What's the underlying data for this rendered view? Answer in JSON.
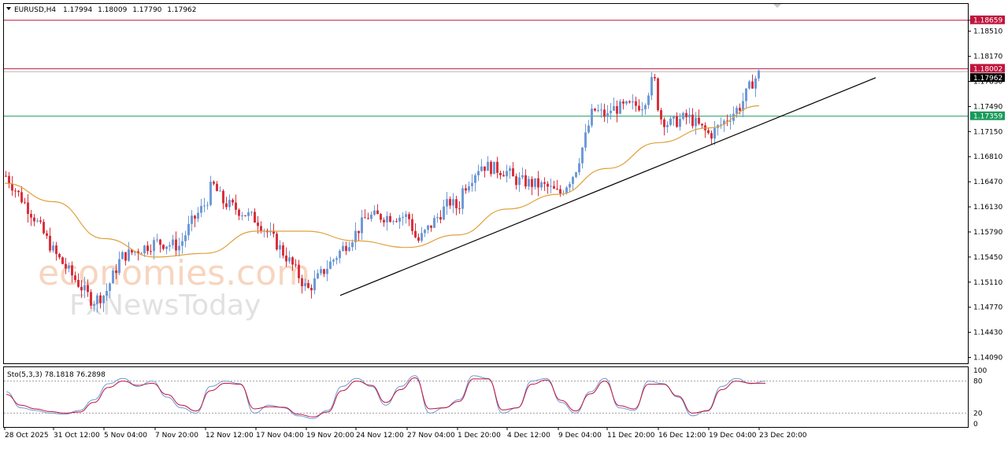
{
  "header": {
    "symbol": "EURUSD,H4",
    "open": "1.17994",
    "high": "1.18009",
    "low": "1.17790",
    "close": "1.17962"
  },
  "watermark": {
    "line1": "economies.com",
    "line2": "FxNewsToday"
  },
  "colors": {
    "bull": "#6f9ad6",
    "bear": "#d9313c",
    "ma": "#e0a03c",
    "resistance": "#c0143c",
    "support": "#1a9a5a",
    "trendline": "#000000",
    "stoch_main": "#6f9ad6",
    "stoch_signal": "#c0143c"
  },
  "chart_data": [
    {
      "type": "candlestick",
      "title": "EURUSD,H4",
      "y_ticks": [
        "1.18659",
        "1.18510",
        "1.18170",
        "1.17830",
        "1.17490",
        "1.17150",
        "1.16810",
        "1.16470",
        "1.16130",
        "1.15790",
        "1.15450",
        "1.15110",
        "1.14770",
        "1.14430",
        "1.14090"
      ],
      "ylim": [
        1.1401,
        1.1888
      ],
      "x_labels": [
        "28 Oct 2025",
        "31 Oct 12:00",
        "5 Nov 04:00",
        "7 Nov 20:00",
        "12 Nov 12:00",
        "17 Nov 04:00",
        "19 Nov 20:00",
        "24 Nov 12:00",
        "27 Nov 04:00",
        "1 Dec 20:00",
        "4 Dec 12:00",
        "9 Dec 04:00",
        "11 Dec 20:00",
        "16 Dec 12:00",
        "19 Dec 04:00",
        "23 Dec 20:00"
      ],
      "price_levels": [
        {
          "label": "1.18659",
          "value": 1.18659,
          "kind": "resistance"
        },
        {
          "label": "1.18002",
          "value": 1.18002,
          "kind": "resistance"
        },
        {
          "label": "1.17962",
          "value": 1.17962,
          "kind": "current"
        },
        {
          "label": "1.17359",
          "value": 1.17359,
          "kind": "support"
        }
      ],
      "trendline": {
        "from": {
          "date": "19 Nov 20:00",
          "value": 1.1493
        },
        "to": {
          "date": "24 Dec",
          "value": 1.1788
        }
      },
      "close_path": [
        {
          "date": "28 Oct 2025",
          "value": 1.1655
        },
        {
          "date": "30 Oct",
          "value": 1.16
        },
        {
          "date": "31 Oct 12:00",
          "value": 1.155
        },
        {
          "date": "4 Nov",
          "value": 1.1485
        },
        {
          "date": "5 Nov 04:00",
          "value": 1.1495
        },
        {
          "date": "6 Nov",
          "value": 1.1545
        },
        {
          "date": "7 Nov 20:00",
          "value": 1.1565
        },
        {
          "date": "10 Nov",
          "value": 1.156
        },
        {
          "date": "11 Nov",
          "value": 1.159
        },
        {
          "date": "12 Nov 12:00",
          "value": 1.162
        },
        {
          "date": "13 Nov",
          "value": 1.1645
        },
        {
          "date": "14 Nov",
          "value": 1.162
        },
        {
          "date": "17 Nov 04:00",
          "value": 1.1595
        },
        {
          "date": "18 Nov",
          "value": 1.157
        },
        {
          "date": "19 Nov",
          "value": 1.1535
        },
        {
          "date": "19 Nov 20:00",
          "value": 1.15
        },
        {
          "date": "21 Nov",
          "value": 1.152
        },
        {
          "date": "24 Nov 12:00",
          "value": 1.158
        },
        {
          "date": "25 Nov",
          "value": 1.16
        },
        {
          "date": "27 Nov 04:00",
          "value": 1.16
        },
        {
          "date": "28 Nov",
          "value": 1.1565
        },
        {
          "date": "1 Dec",
          "value": 1.162
        },
        {
          "date": "1 Dec 20:00",
          "value": 1.161
        },
        {
          "date": "2 Dec",
          "value": 1.1635
        },
        {
          "date": "3 Dec",
          "value": 1.167
        },
        {
          "date": "4 Dec 12:00",
          "value": 1.166
        },
        {
          "date": "5 Dec",
          "value": 1.165
        },
        {
          "date": "8 Dec",
          "value": 1.164
        },
        {
          "date": "9 Dec 04:00",
          "value": 1.163
        },
        {
          "date": "10 Dec",
          "value": 1.166
        },
        {
          "date": "10 Dec 12:00",
          "value": 1.17
        },
        {
          "date": "11 Dec",
          "value": 1.1745
        },
        {
          "date": "11 Dec 20:00",
          "value": 1.1735
        },
        {
          "date": "12 Dec",
          "value": 1.1745
        },
        {
          "date": "15 Dec",
          "value": 1.1752
        },
        {
          "date": "16 Dec",
          "value": 1.179
        },
        {
          "date": "16 Dec 12:00",
          "value": 1.1735
        },
        {
          "date": "17 Dec",
          "value": 1.1725
        },
        {
          "date": "18 Dec",
          "value": 1.1735
        },
        {
          "date": "19 Dec 04:00",
          "value": 1.171
        },
        {
          "date": "22 Dec",
          "value": 1.175
        },
        {
          "date": "23 Dec",
          "value": 1.178
        },
        {
          "date": "23 Dec 20:00",
          "value": 1.1796
        }
      ],
      "ma_path": [
        {
          "date": "28 Oct 2025",
          "value": 1.1645
        },
        {
          "date": "31 Oct 12:00",
          "value": 1.162
        },
        {
          "date": "5 Nov 04:00",
          "value": 1.157
        },
        {
          "date": "7 Nov 20:00",
          "value": 1.1545
        },
        {
          "date": "12 Nov 12:00",
          "value": 1.155
        },
        {
          "date": "17 Nov 04:00",
          "value": 1.158
        },
        {
          "date": "19 Nov 20:00",
          "value": 1.158
        },
        {
          "date": "24 Nov 12:00",
          "value": 1.1567
        },
        {
          "date": "27 Nov 04:00",
          "value": 1.1558
        },
        {
          "date": "1 Dec 20:00",
          "value": 1.1575
        },
        {
          "date": "4 Dec 12:00",
          "value": 1.161
        },
        {
          "date": "9 Dec 04:00",
          "value": 1.163
        },
        {
          "date": "11 Dec 20:00",
          "value": 1.1665
        },
        {
          "date": "16 Dec 12:00",
          "value": 1.17
        },
        {
          "date": "19 Dec 04:00",
          "value": 1.172
        },
        {
          "date": "23 Dec 20:00",
          "value": 1.175
        }
      ]
    },
    {
      "type": "line",
      "title": "Sto(5,3,3) 78.1818 76.2898",
      "ylim": [
        0,
        100
      ],
      "y_ticks": [
        "100",
        "80",
        "20",
        "0"
      ],
      "levels": [
        80,
        20
      ],
      "series": [
        {
          "name": "78.1818",
          "values": [
            60,
            30,
            25,
            20,
            18,
            25,
            45,
            75,
            85,
            70,
            80,
            50,
            30,
            20,
            70,
            80,
            75,
            20,
            35,
            30,
            15,
            10,
            25,
            70,
            85,
            70,
            35,
            70,
            90,
            20,
            30,
            45,
            90,
            85,
            20,
            30,
            80,
            85,
            40,
            20,
            60,
            85,
            30,
            25,
            80,
            75,
            50,
            15,
            25,
            70,
            85,
            75,
            80
          ]
        },
        {
          "name": "76.2898",
          "values": [
            55,
            35,
            28,
            23,
            20,
            22,
            40,
            68,
            80,
            72,
            76,
            55,
            35,
            24,
            62,
            76,
            74,
            28,
            32,
            31,
            18,
            13,
            22,
            62,
            80,
            72,
            40,
            64,
            86,
            28,
            30,
            42,
            84,
            84,
            26,
            30,
            74,
            82,
            44,
            24,
            56,
            80,
            34,
            28,
            74,
            74,
            52,
            20,
            24,
            64,
            80,
            76,
            76
          ]
        }
      ]
    }
  ]
}
